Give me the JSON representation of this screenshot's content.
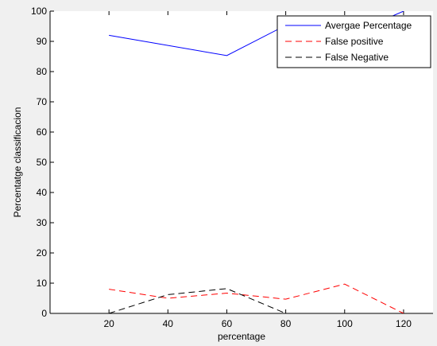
{
  "chart_data": {
    "type": "line",
    "title": "",
    "xlabel": "percentage",
    "ylabel": "Percentatge classificacion",
    "xlim": [
      0,
      130
    ],
    "ylim": [
      0,
      100
    ],
    "xticks": [
      20,
      40,
      60,
      80,
      100,
      120
    ],
    "yticks": [
      0,
      10,
      20,
      30,
      40,
      50,
      60,
      70,
      80,
      90,
      100
    ],
    "grid": false,
    "legend_position": "top-right",
    "series": [
      {
        "name": "Avergae Percentage",
        "color": "#0000ff",
        "dash": "solid",
        "x": [
          20,
          60,
          80,
          100,
          120
        ],
        "y": [
          92,
          85.3,
          95.3,
          91.5,
          100
        ]
      },
      {
        "name": "False positive",
        "color": "#ff0000",
        "dash": "dashed",
        "x": [
          20,
          40,
          60,
          80,
          100,
          120
        ],
        "y": [
          8,
          5,
          6.7,
          4.7,
          9.7,
          0
        ]
      },
      {
        "name": "False Negative",
        "color": "#000000",
        "dash": "dashed",
        "x": [
          20,
          40,
          60,
          80
        ],
        "y": [
          0,
          6.2,
          8.2,
          0
        ]
      }
    ]
  }
}
